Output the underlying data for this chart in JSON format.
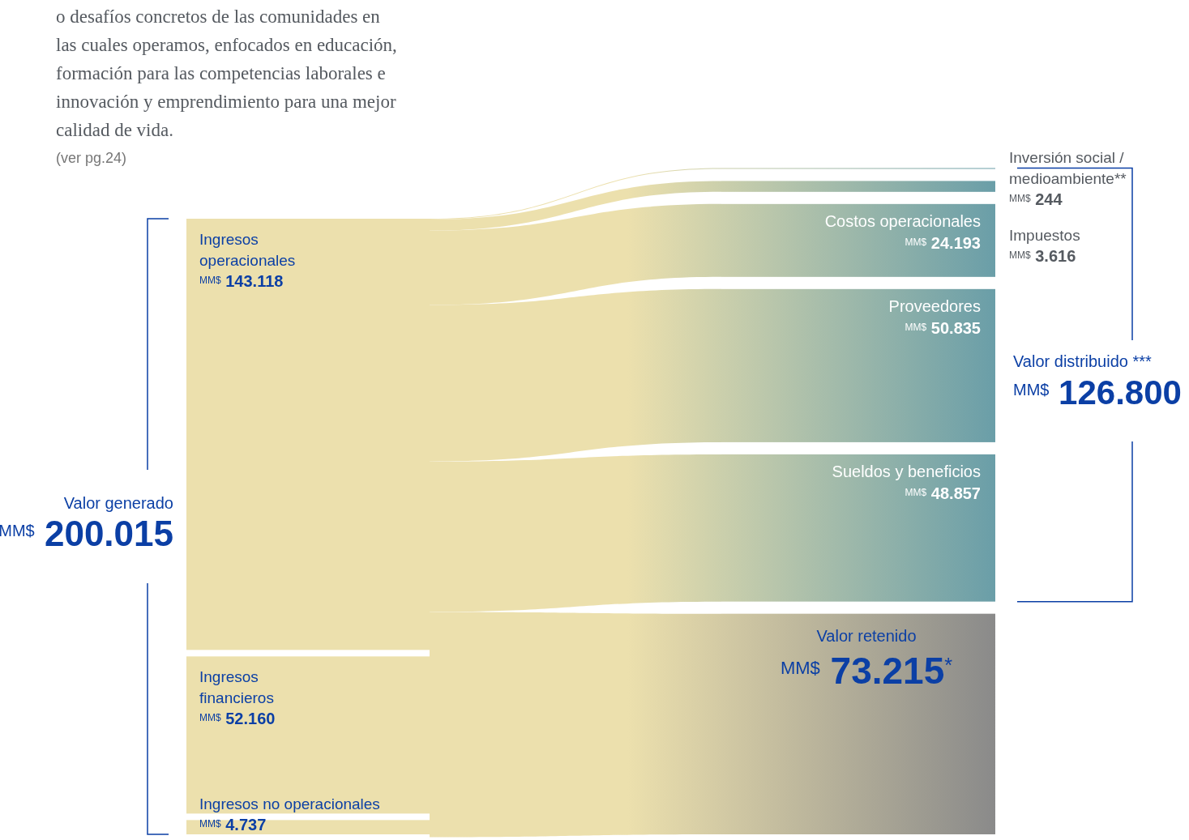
{
  "chart_data": {
    "type": "other",
    "categories": [
      "Ingresos operacionales",
      "Ingresos financieros",
      "Ingresos no operacionales",
      "Inversión social / medioambiente**",
      "Impuestos",
      "Costos operacionales",
      "Proveedores",
      "Sueldos y beneficios",
      "Valor retenido"
    ],
    "series": [
      {
        "color": "#ece0ad",
        "values": [
          143118,
          52160,
          4737,
          null,
          null,
          null,
          null,
          null,
          null
        ],
        "value_labels": [
          "$^{MM$}$ 143.118",
          "$^{MM$}$ 52.160",
          "$^{MM$}$ 4.737",
          null,
          null,
          null,
          null,
          null,
          null
        ]
      },
      {
        "colors": [
          null,
          null,
          null,
          "#6a9ea8",
          "#6a9ea8",
          "#6a9ea8",
          "#6a9ea8",
          "#6a9ea8",
          "#8a8a8a"
        ],
        "values": [
          null,
          null,
          null,
          244,
          3616,
          24193,
          50835,
          48857,
          73215
        ],
        "value_labels": [
          null,
          null,
          null,
          "$^{MM$}$ 244",
          "$^{MM$}$ 3.616",
          "$^{MM$}$ 24.193",
          "$^{MM$}$ 50.835",
          "$^{MM$}$ 48.857",
          "$^{MM$}$ 73.215$^{*}$"
        ]
      }
    ],
    "annotations": [
      "o desafíos concretos de las comunidades en las cuales operamos, enfocados en educación, formación para las competencias laborales e innovación y emprendimiento para una mejor calidad de vida.",
      "(ver pg.24)",
      "Valor generado",
      "$^{MM$}$ 200.015",
      "Valor distribuido ***",
      "$^{MM$}$ 126.800"
    ]
  }
}
